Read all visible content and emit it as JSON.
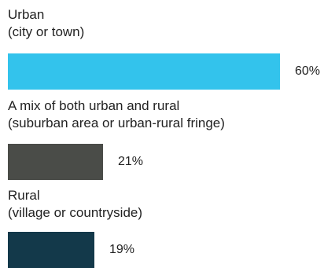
{
  "chart_data": {
    "type": "bar",
    "orientation": "horizontal",
    "categories": [
      {
        "line1": "Urban",
        "line2": "(city or town)"
      },
      {
        "line1": "A mix of both urban and rural",
        "line2": "(suburban area or urban-rural fringe)"
      },
      {
        "line1": "Rural",
        "line2": "(village or countryside)"
      }
    ],
    "values": [
      60,
      21,
      19
    ],
    "value_labels": [
      "60%",
      "21%",
      "19%"
    ],
    "colors": [
      "#33c3ec",
      "#4a4c48",
      "#13394a"
    ],
    "xlim": [
      0,
      60
    ],
    "grid": false,
    "legend": "none"
  }
}
